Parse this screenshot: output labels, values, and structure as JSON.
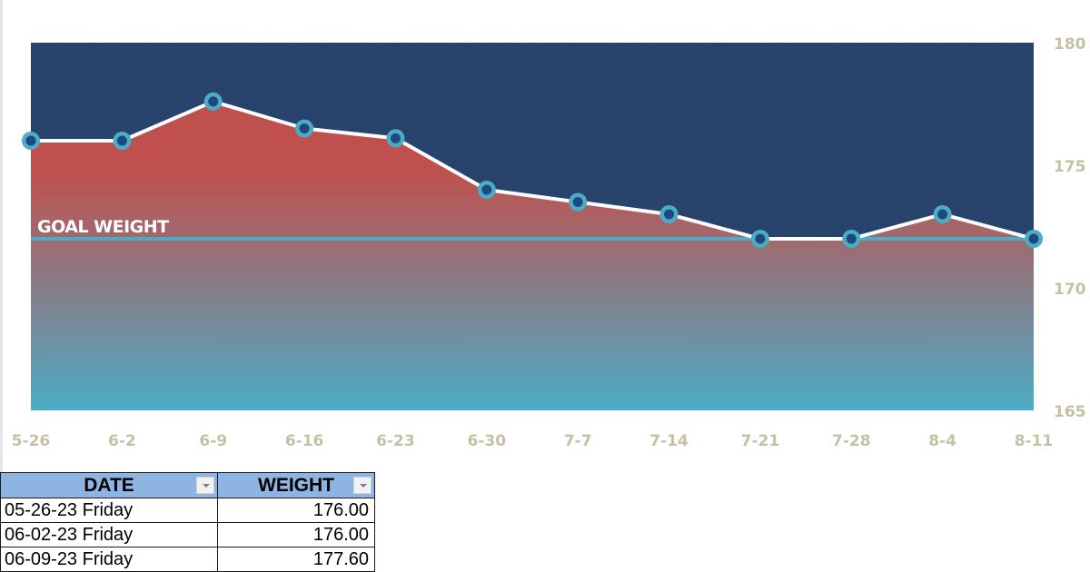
{
  "chart_data": {
    "type": "area",
    "title": "",
    "xlabel": "",
    "ylabel": "",
    "categories": [
      "5-26",
      "6-2",
      "6-9",
      "6-16",
      "6-23",
      "6-30",
      "7-7",
      "7-14",
      "7-21",
      "7-28",
      "8-4",
      "8-11"
    ],
    "series": [
      {
        "name": "Weight",
        "values": [
          176.0,
          176.0,
          177.6,
          176.5,
          176.1,
          174.0,
          173.5,
          173.0,
          172.0,
          172.0,
          173.0,
          172.0
        ]
      },
      {
        "name": "Goal Weight",
        "values": [
          172,
          172,
          172,
          172,
          172,
          172,
          172,
          172,
          172,
          172,
          172,
          172
        ]
      }
    ],
    "ylim": [
      165,
      180
    ],
    "yticks": [
      180,
      175,
      170,
      165
    ],
    "y_axis_position": "right",
    "annotations": [
      {
        "text": "GOAL WEIGHT",
        "y": 172
      }
    ],
    "grid": false,
    "legend": "none"
  },
  "colors": {
    "plot_background": "#27426a",
    "area_top": "#c0504d",
    "area_bottom": "#4bacc6",
    "line": "#ffffff",
    "marker_ring": "#4bacc6",
    "marker_center": "#1f497d",
    "goal_line": "#4bacc6",
    "tick_text": "#c6c0a4",
    "table_header": "#8db4e2"
  },
  "table": {
    "headers": [
      {
        "label": "DATE"
      },
      {
        "label": "WEIGHT"
      }
    ],
    "rows": [
      {
        "date": "05-26-23 Friday",
        "weight": "176.00"
      },
      {
        "date": "06-02-23 Friday",
        "weight": "176.00"
      },
      {
        "date": "06-09-23 Friday",
        "weight": "177.60"
      }
    ]
  }
}
